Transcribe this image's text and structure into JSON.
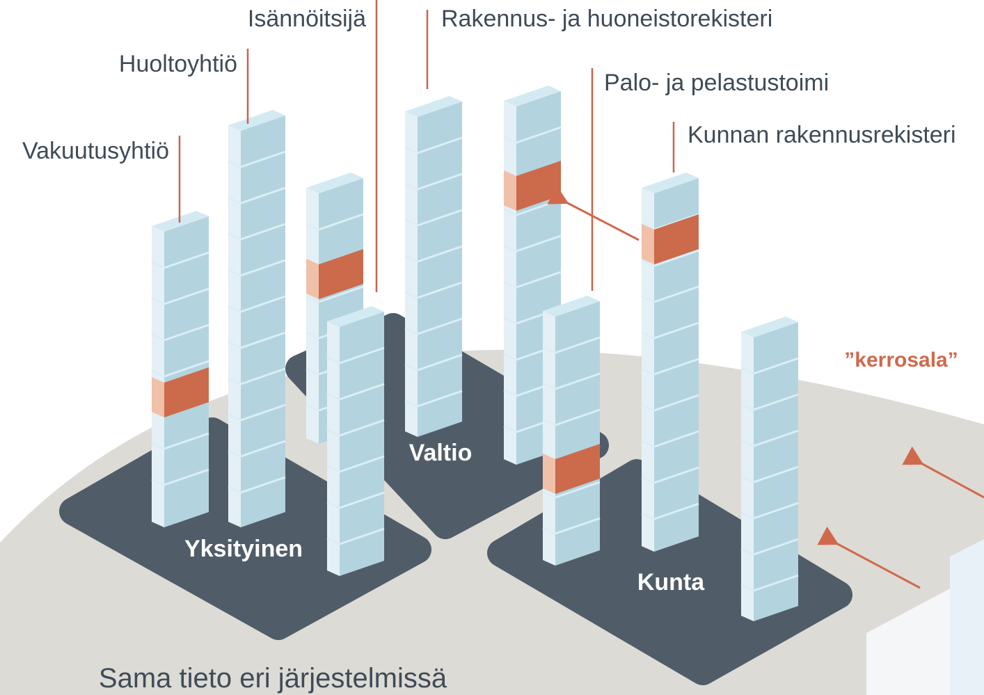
{
  "systems": [
    "Isännöitsijä",
    "Rakennus- ja huoneistorekisteri",
    "Huoltoyhtiö",
    "Palo- ja pelastustoimi",
    "Vakuutusyhtiö",
    "Kunnan rakennusrekisteri"
  ],
  "highlight": "”kerrosala”",
  "platforms": [
    "Valtio",
    "Yksityinen",
    "Kunta"
  ],
  "caption": "Sama tieto eri järjestelmissä"
}
